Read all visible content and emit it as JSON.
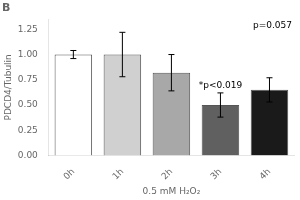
{
  "chart_data": {
    "type": "bar",
    "title": "B",
    "categories": [
      "0h",
      "1h",
      "2h",
      "3h",
      "4h"
    ],
    "values": [
      1.0,
      1.0,
      0.82,
      0.5,
      0.65
    ],
    "errors": [
      0.04,
      0.22,
      0.18,
      0.12,
      0.12
    ],
    "colors": [
      "#ffffff",
      "#d0d0d0",
      "#a8a8a8",
      "#606060",
      "#1a1a1a"
    ],
    "xlabel": "0.5 mM H₂O₂",
    "ylabel": "PDCD4/Tubulin",
    "ylim": [
      0.0,
      1.35
    ],
    "yticks": [
      {
        "value": 0.0,
        "label": "0.00"
      },
      {
        "value": 0.25,
        "label": "0.25"
      },
      {
        "value": 0.5,
        "label": "0.50"
      },
      {
        "value": 0.75,
        "label": "0.75"
      },
      {
        "value": 1.0,
        "label": "1.00"
      },
      {
        "value": 1.25,
        "label": "1.25"
      }
    ],
    "annotations": [
      {
        "text": "*p<0.019",
        "category": "3h"
      },
      {
        "text": "p=0.057"
      }
    ],
    "grid": false
  }
}
